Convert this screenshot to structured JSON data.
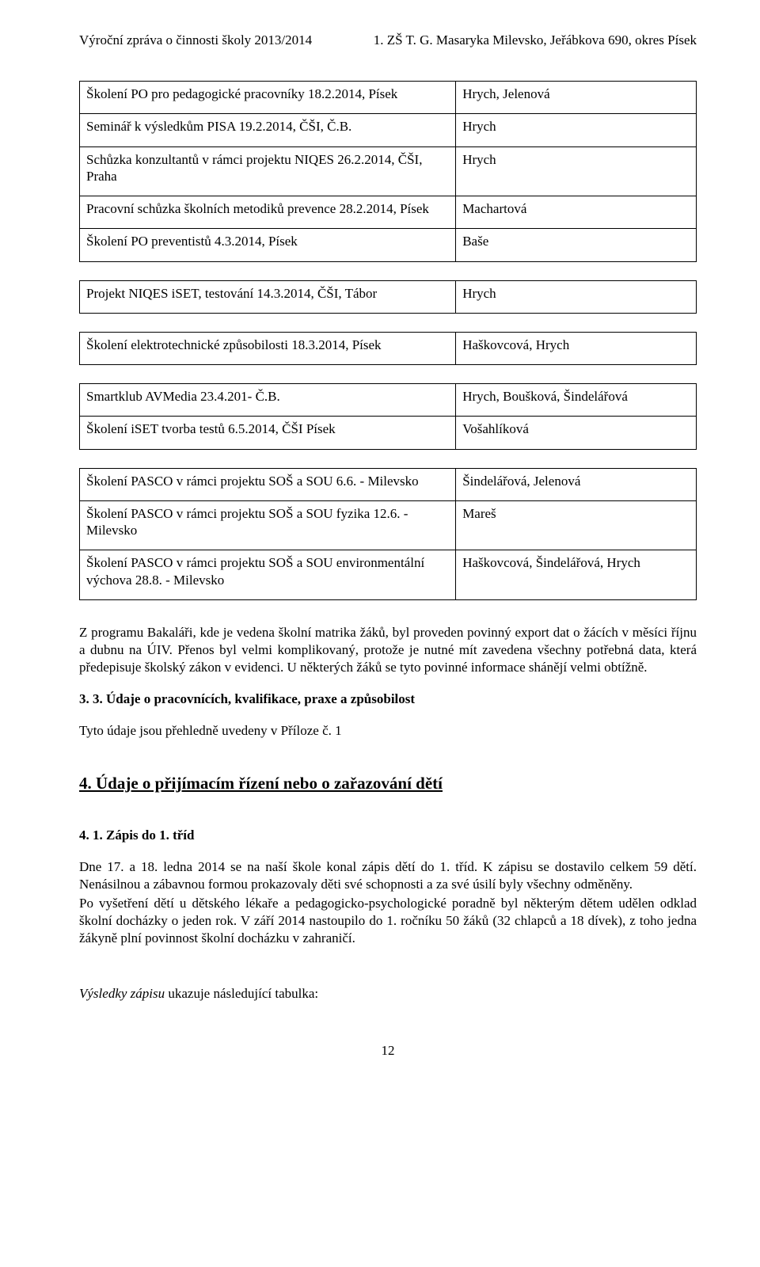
{
  "header": {
    "left": "Výroční zpráva o činnosti školy 2013/2014",
    "right": "1. ZŠ T. G. Masaryka Milevsko, Jeřábkova 690, okres Písek"
  },
  "table": {
    "rows": [
      {
        "left": "Školení PO pro pedagogické pracovníky  18.2.2014, Písek",
        "right": "Hrych, Jelenová"
      },
      {
        "left": "Seminář k výsledkům PISA  19.2.2014, ČŠI, Č.B.",
        "right": "Hrych"
      },
      {
        "left": "Schůzka konzultantů v rámci projektu NIQES  26.2.2014, ČŠI, Praha",
        "right": "Hrych"
      },
      {
        "left": "Pracovní schůzka školních metodiků prevence  28.2.2014, Písek",
        "right": "Machartová"
      },
      {
        "left": "Školení PO preventistů  4.3.2014, Písek",
        "right": "Baše"
      },
      {
        "left": "Projekt NIQES  iSET, testování  14.3.2014, ČŠI, Tábor",
        "right": "Hrych"
      },
      {
        "left": "Školení elektrotechnické způsobilosti  18.3.2014, Písek",
        "right": "Haškovcová, Hrych"
      },
      {
        "left": "Smartklub AVMedia  23.4.201- Č.B.",
        "right": "Hrych, Boušková, Šindelářová"
      },
      {
        "left": "Školení iSET  tvorba testů  6.5.2014, ČŠI Písek",
        "right": "Vošahlíková"
      },
      {
        "left": "Školení PASCO v rámci projektu SOŠ a SOU  6.6. - Milevsko",
        "right": "Šindelářová, Jelenová"
      },
      {
        "left": "Školení PASCO v rámci projektu SOŠ a SOU  fyzika 12.6. - Milevsko",
        "right": "Mareš"
      },
      {
        "left": "Školení PASCO v rámci projektu SOŠ a SOU  environmentální výchova  28.8. - Milevsko",
        "right": "Haškovcová, Šindelářová, Hrych"
      }
    ],
    "gaps_after": [
      4,
      5,
      6,
      8
    ]
  },
  "para1": "Z programu Bakaláři, kde je vedena školní matrika žáků, byl proveden povinný export dat o žácích v měsíci říjnu a dubnu na ÚIV. Přenos byl velmi komplikovaný,  protože  je nutné mít zavedena všechny potřebná data, která předepisuje školský zákon v evidenci. U některých žáků se tyto povinné informace shánějí velmi obtížně.",
  "h3_1": "3. 3. Údaje o pracovnících, kvalifikace, praxe a způsobilost",
  "line1": "Tyto údaje jsou přehledně uvedeny v Příloze č. 1",
  "h2": "4. Údaje o přijímacím řízení nebo o zařazování dětí",
  "h3_2": "4. 1. Zápis do 1. tříd",
  "para2": "Dne 17. a 18. ledna 2014 se na naší škole konal zápis dětí do 1. tříd. K zápisu se dostavilo celkem 59 dětí. Nenásilnou a zábavnou formou prokazovaly děti své schopnosti a za své úsilí byly všechny odměněny.",
  "para3": "Po vyšetření dětí u dětského lékaře a pedagogicko-psychologické poradně byl některým dětem udělen odklad školní docházky o jeden rok.  V září 2014 nastoupilo do 1. ročníku 50 žáků (32 chlapců a 18 dívek), z toho jedna žákyně plní povinnost školní docházku v zahraničí.",
  "line2_prefix_italic": "Výsledky zápisu",
  "line2_rest": " ukazuje následující tabulka:",
  "page_number": "12"
}
